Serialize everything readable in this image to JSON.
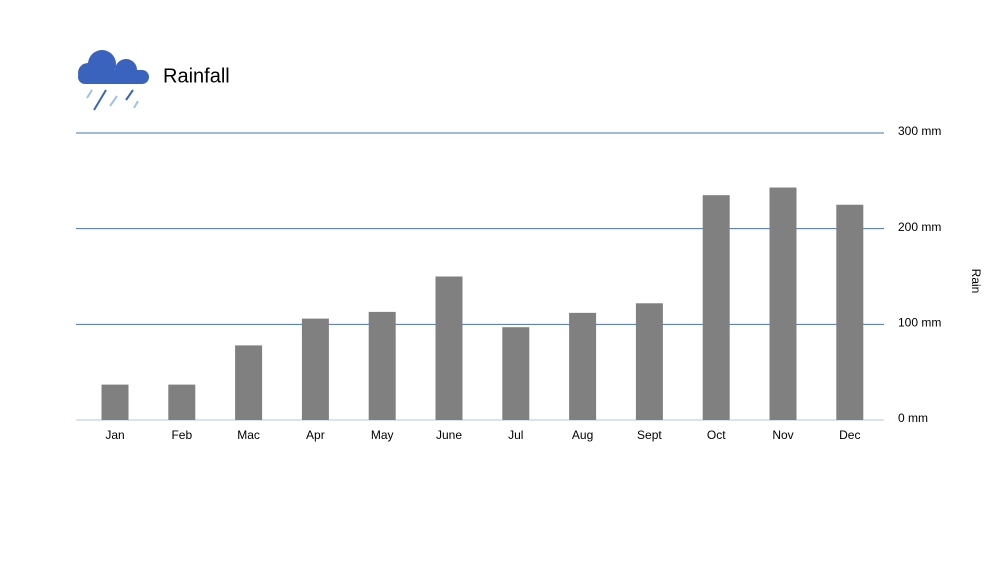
{
  "chart_data": {
    "type": "bar",
    "title": "Rainfall",
    "y_axis_label": "Rain",
    "categories": [
      "Jan",
      "Feb",
      "Mac",
      "Apr",
      "May",
      "June",
      "Jul",
      "Aug",
      "Sept",
      "Oct",
      "Nov",
      "Dec"
    ],
    "values": [
      37,
      37,
      78,
      106,
      113,
      150,
      97,
      112,
      122,
      235,
      243,
      225
    ],
    "color": "#808080",
    "ylim": [
      0,
      300
    ],
    "yticks": [
      {
        "value": 0,
        "label": "0 mm"
      },
      {
        "value": 100,
        "label": "100 mm"
      },
      {
        "value": 200,
        "label": "200 mm"
      },
      {
        "value": 300,
        "label": "300 mm"
      }
    ],
    "grid": true,
    "grid_color": "#4a72b8"
  }
}
